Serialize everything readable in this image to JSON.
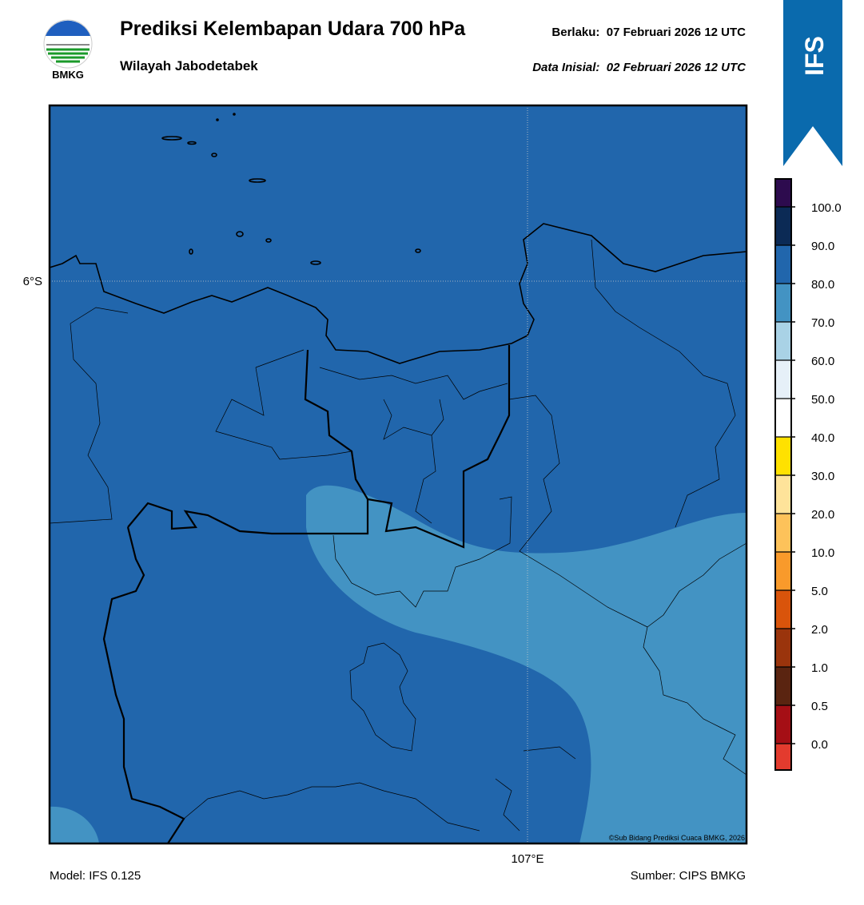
{
  "header": {
    "title": "Prediksi Kelembapan Udara 700 hPa",
    "subtitle": "Wilayah Jabodetabek",
    "valid": "Berlaku:  07 Februari 2026 12 UTC",
    "initial": "Data Inisial:  02 Februari 2026 12 UTC",
    "logo_text": "BMKG",
    "badge": "IFS"
  },
  "map": {
    "lat_label": "6°S",
    "lon_label": "107°E",
    "credit": "©Sub Bidang Prediksi Cuaca BMKG, 2026"
  },
  "colorbar": {
    "ticks": [
      {
        "value": 100,
        "label": "100.0"
      },
      {
        "value": 90,
        "label": "90.0"
      },
      {
        "value": 80,
        "label": "80.0"
      },
      {
        "value": 70,
        "label": "70.0"
      },
      {
        "value": 60,
        "label": "60.0"
      },
      {
        "value": 50,
        "label": "50.0"
      },
      {
        "value": 40,
        "label": "40.0"
      },
      {
        "value": 30,
        "label": "30.0"
      },
      {
        "value": 20,
        "label": "20.0"
      },
      {
        "value": 10,
        "label": "10.0"
      },
      {
        "value": 5,
        "label": "5.0"
      },
      {
        "value": 2,
        "label": "2.0"
      },
      {
        "value": 1,
        "label": "1.0"
      },
      {
        "value": 0.5,
        "label": "0.5"
      },
      {
        "value": 0,
        "label": "0.0"
      }
    ],
    "colors": [
      "#2d0b4e",
      "#0b2a55",
      "#2166ac",
      "#4393c3",
      "#a9d2e6",
      "#e6f0f8",
      "#ffffff",
      "#ffe100",
      "#fee39a",
      "#fdc25a",
      "#f99a2b",
      "#d9540b",
      "#9a340c",
      "#5a2410",
      "#a50f15",
      "#e33b2e"
    ]
  },
  "footer": {
    "model": "Model: IFS 0.125",
    "source": "Sumber: CIPS BMKG"
  }
}
